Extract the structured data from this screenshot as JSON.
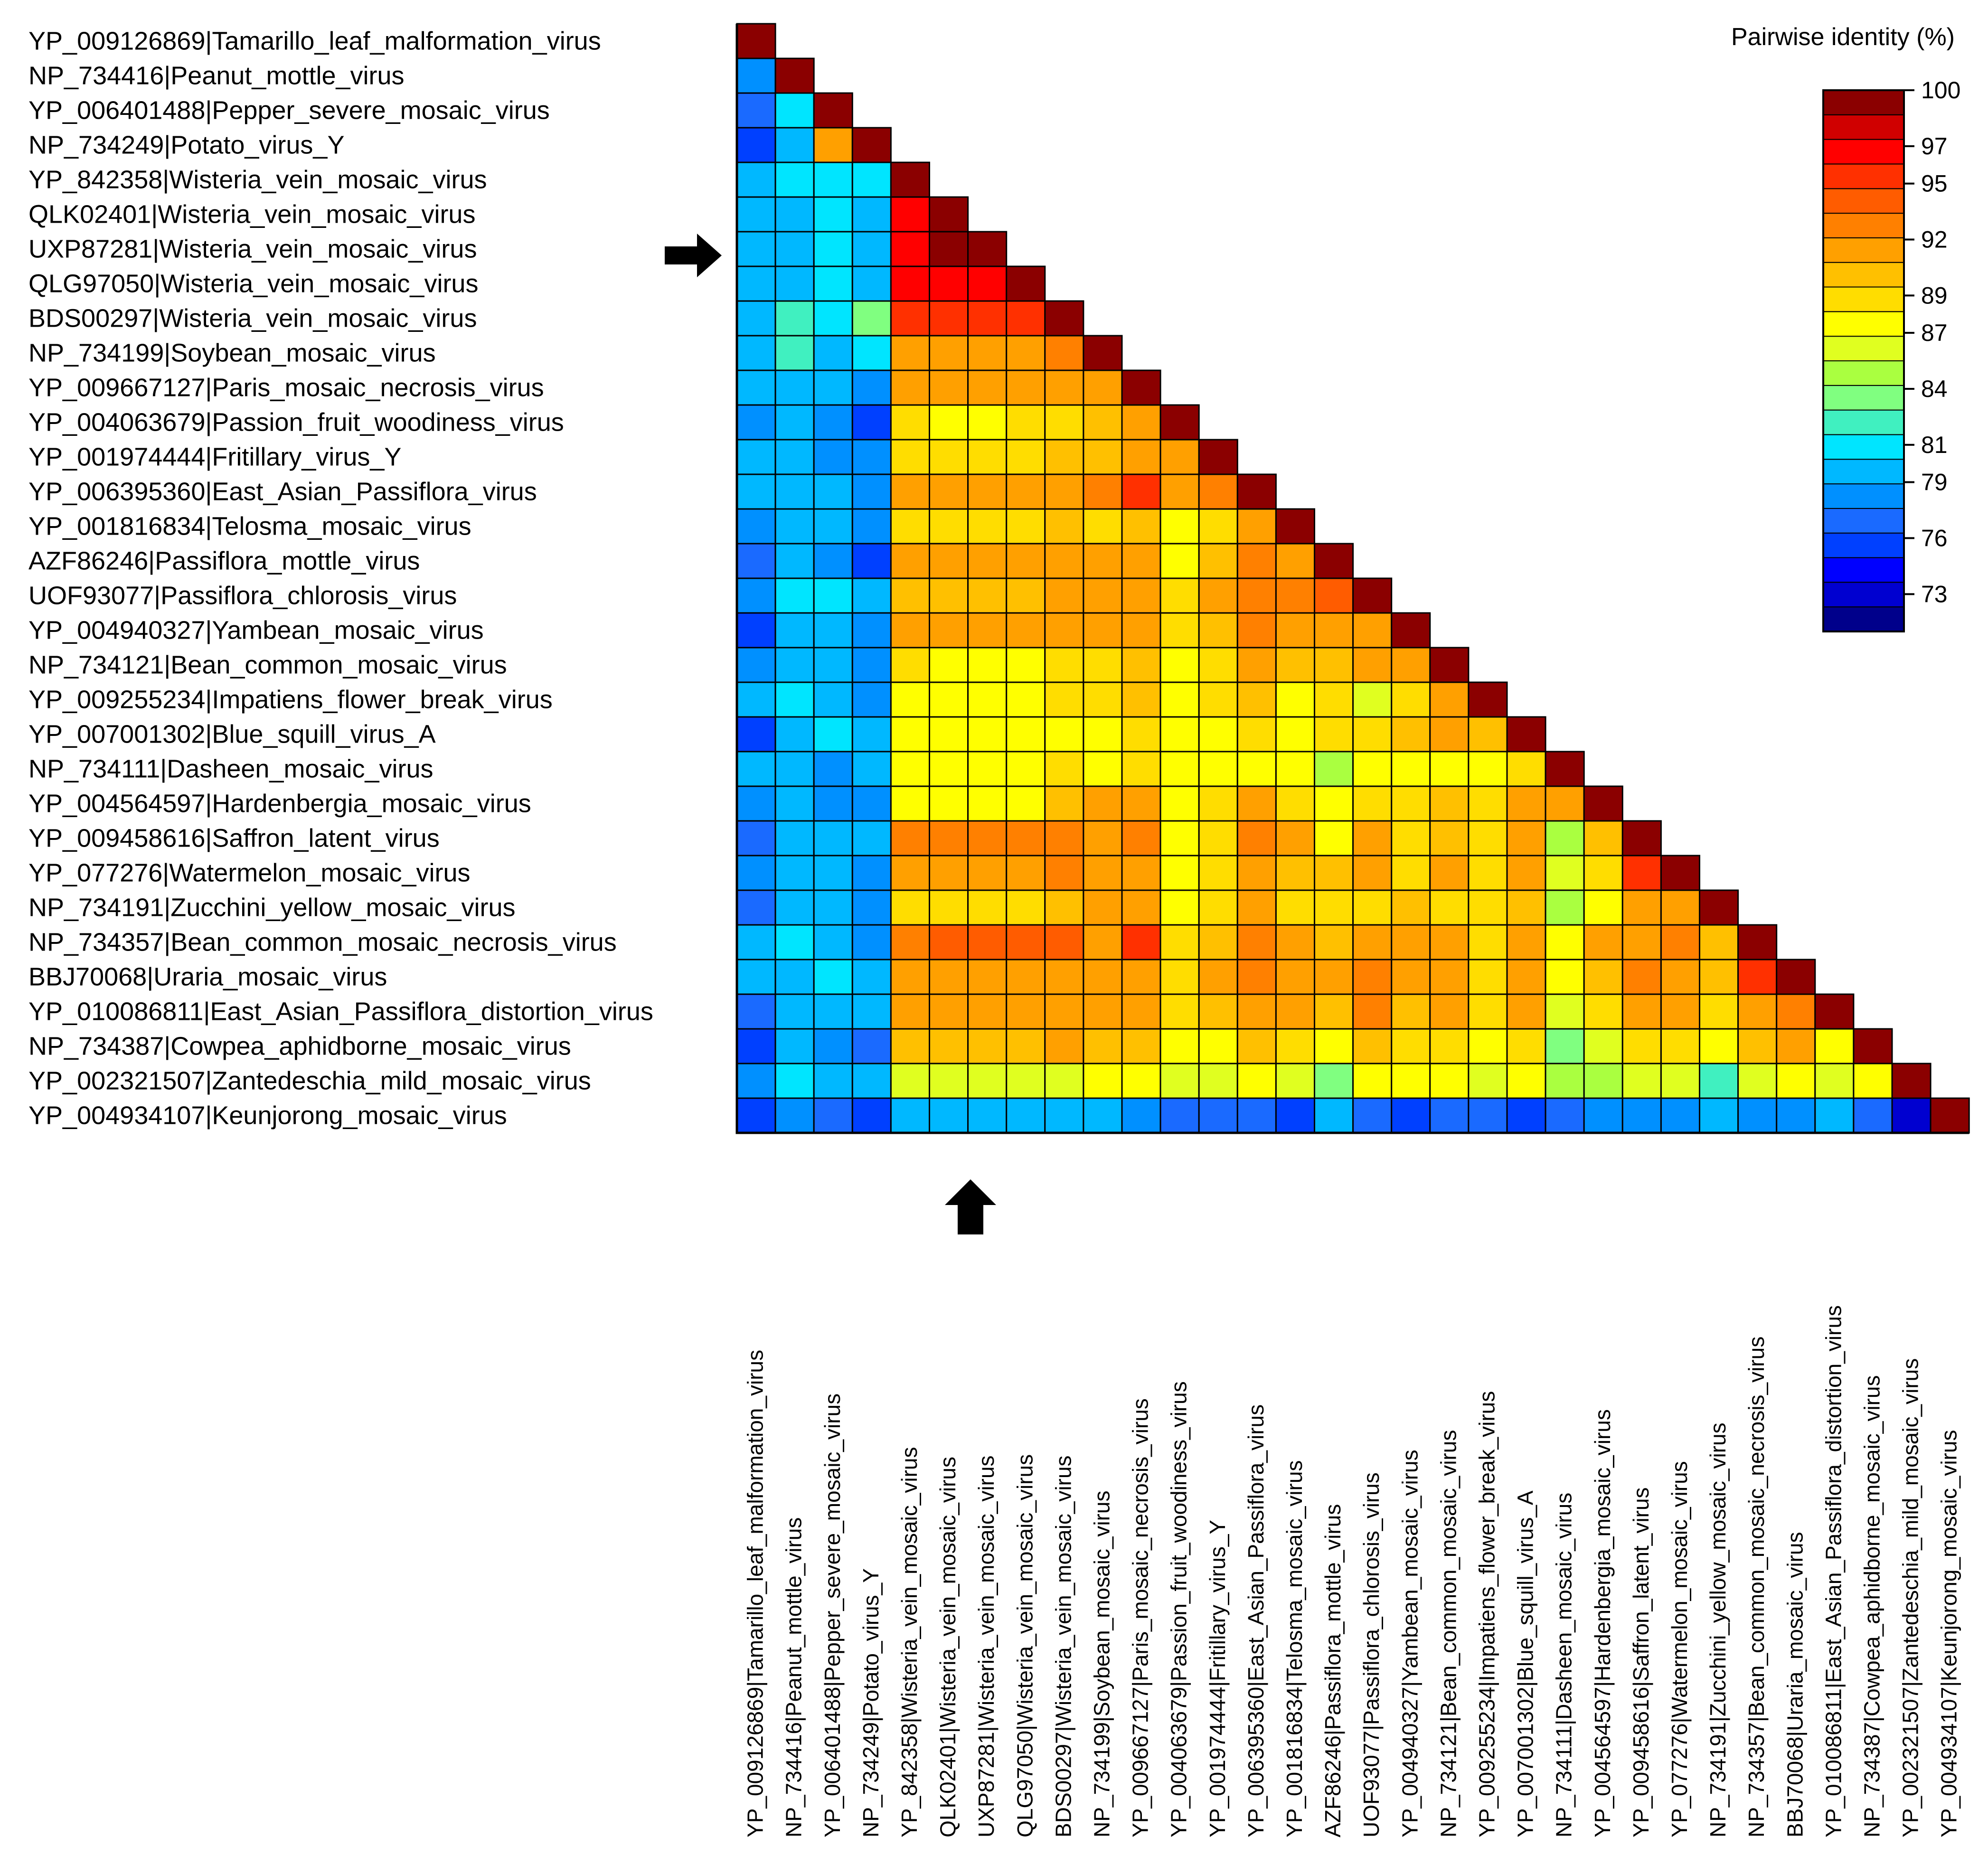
{
  "chart_data": {
    "type": "heatmap",
    "subtype": "lower-triangular pairwise identity matrix",
    "labels": [
      "YP_009126869|Tamarillo_leaf_malformation_virus",
      "NP_734416|Peanut_mottle_virus",
      "YP_006401488|Pepper_severe_mosaic_virus",
      "NP_734249|Potato_virus_Y",
      "YP_842358|Wisteria_vein_mosaic_virus",
      "QLK02401|Wisteria_vein_mosaic_virus",
      "UXP87281|Wisteria_vein_mosaic_virus",
      "QLG97050|Wisteria_vein_mosaic_virus",
      "BDS00297|Wisteria_vein_mosaic_virus",
      "NP_734199|Soybean_mosaic_virus",
      "YP_009667127|Paris_mosaic_necrosis_virus",
      "YP_004063679|Passion_fruit_woodiness_virus",
      "YP_001974444|Fritillary_virus_Y",
      "YP_006395360|East_Asian_Passiflora_virus",
      "YP_001816834|Telosma_mosaic_virus",
      "AZF86246|Passiflora_mottle_virus",
      "UOF93077|Passiflora_chlorosis_virus",
      "YP_004940327|Yambean_mosaic_virus",
      "NP_734121|Bean_common_mosaic_virus",
      "YP_009255234|Impatiens_flower_break_virus",
      "YP_007001302|Blue_squill_virus_A",
      "NP_734111|Dasheen_mosaic_virus",
      "YP_004564597|Hardenbergia_mosaic_virus",
      "YP_009458616|Saffron_latent_virus",
      "YP_077276|Watermelon_mosaic_virus",
      "NP_734191|Zucchini_yellow_mosaic_virus",
      "NP_734357|Bean_common_mosaic_necrosis_virus",
      "BBJ70068|Uraria_mosaic_virus",
      "YP_010086811|East_Asian_Passiflora_distortion_virus",
      "NP_734387|Cowpea_aphidborne_mosaic_virus",
      "YP_002321507|Zantedeschia_mild_mosaic_virus",
      "YP_004934107|Keunjorong_mosaic_virus"
    ],
    "matrix": [
      [
        100
      ],
      [
        78,
        100
      ],
      [
        77,
        81,
        100
      ],
      [
        75,
        80,
        92,
        100
      ],
      [
        79,
        81,
        81,
        81,
        100
      ],
      [
        79,
        80,
        81,
        80,
        97,
        100
      ],
      [
        79,
        80,
        81,
        80,
        97,
        100,
        100
      ],
      [
        79,
        80,
        81,
        80,
        97,
        97,
        97,
        100
      ],
      [
        80,
        82,
        81,
        83,
        95,
        96,
        96,
        96,
        100
      ],
      [
        80,
        82,
        80,
        81,
        92,
        92,
        92,
        92,
        93,
        100
      ],
      [
        79,
        80,
        79,
        78,
        92,
        92,
        92,
        92,
        92,
        91,
        100
      ],
      [
        78,
        79,
        78,
        76,
        89,
        88,
        88,
        89,
        89,
        90,
        91,
        100
      ],
      [
        79,
        80,
        78,
        78,
        89,
        89,
        89,
        89,
        90,
        90,
        92,
        91,
        100
      ],
      [
        79,
        80,
        79,
        78,
        91,
        91,
        91,
        91,
        92,
        93,
        95,
        91,
        93,
        100
      ],
      [
        78,
        80,
        79,
        78,
        89,
        89,
        89,
        89,
        90,
        89,
        90,
        87,
        89,
        92,
        100
      ],
      [
        77,
        79,
        78,
        76,
        91,
        91,
        91,
        91,
        91,
        92,
        92,
        88,
        90,
        93,
        92,
        100
      ],
      [
        78,
        81,
        81,
        79,
        90,
        90,
        90,
        90,
        91,
        92,
        92,
        89,
        91,
        93,
        93,
        94,
        100
      ],
      [
        76,
        80,
        79,
        78,
        91,
        91,
        91,
        91,
        92,
        92,
        92,
        89,
        90,
        93,
        91,
        92,
        91,
        100
      ],
      [
        78,
        80,
        79,
        78,
        89,
        87,
        87,
        88,
        89,
        89,
        90,
        88,
        89,
        92,
        90,
        90,
        91,
        91,
        100
      ],
      [
        79,
        81,
        79,
        78,
        88,
        88,
        88,
        88,
        89,
        89,
        90,
        87,
        89,
        90,
        88,
        89,
        86,
        89,
        91,
        100
      ],
      [
        76,
        80,
        81,
        79,
        87,
        87,
        87,
        88,
        88,
        88,
        89,
        87,
        88,
        89,
        88,
        89,
        89,
        90,
        91,
        90,
        100
      ],
      [
        79,
        79,
        78,
        79,
        88,
        88,
        88,
        88,
        89,
        88,
        89,
        87,
        88,
        88,
        87,
        85,
        87,
        88,
        87,
        88,
        89,
        100
      ],
      [
        78,
        79,
        78,
        78,
        88,
        88,
        88,
        88,
        90,
        91,
        91,
        87,
        89,
        91,
        89,
        88,
        89,
        89,
        90,
        89,
        92,
        91,
        100
      ],
      [
        77,
        80,
        79,
        79,
        93,
        93,
        93,
        93,
        93,
        92,
        93,
        88,
        89,
        93,
        91,
        88,
        91,
        89,
        90,
        89,
        92,
        85,
        90,
        100
      ],
      [
        78,
        79,
        79,
        78,
        92,
        92,
        92,
        92,
        93,
        91,
        92,
        88,
        89,
        92,
        90,
        90,
        92,
        89,
        91,
        89,
        91,
        86,
        89,
        95,
        100
      ],
      [
        77,
        79,
        79,
        78,
        89,
        89,
        89,
        89,
        90,
        91,
        91,
        87,
        89,
        91,
        89,
        89,
        89,
        90,
        89,
        89,
        90,
        85,
        88,
        91,
        91,
        100
      ],
      [
        79,
        81,
        79,
        78,
        93,
        94,
        94,
        94,
        94,
        91,
        95,
        89,
        90,
        93,
        91,
        90,
        92,
        92,
        92,
        89,
        92,
        87,
        91,
        92,
        93,
        90,
        100
      ],
      [
        79,
        80,
        81,
        79,
        91,
        91,
        91,
        92,
        92,
        91,
        92,
        89,
        91,
        93,
        92,
        91,
        93,
        92,
        92,
        89,
        91,
        87,
        90,
        93,
        92,
        90,
        96,
        100
      ],
      [
        77,
        80,
        80,
        79,
        91,
        91,
        91,
        91,
        92,
        91,
        91,
        89,
        90,
        92,
        91,
        90,
        93,
        90,
        92,
        89,
        91,
        86,
        89,
        91,
        92,
        89,
        92,
        93,
        100
      ],
      [
        76,
        79,
        78,
        77,
        90,
        90,
        90,
        90,
        91,
        90,
        90,
        88,
        88,
        90,
        89,
        87,
        90,
        89,
        89,
        87,
        89,
        83,
        86,
        89,
        89,
        88,
        90,
        91,
        88,
        100
      ],
      [
        78,
        81,
        80,
        80,
        86,
        86,
        86,
        86,
        86,
        87,
        87,
        86,
        86,
        88,
        86,
        84,
        87,
        87,
        88,
        86,
        87,
        85,
        85,
        86,
        86,
        82,
        86,
        87,
        86,
        87,
        100
      ],
      [
        76,
        78,
        77,
        76,
        80,
        80,
        80,
        79,
        79,
        79,
        78,
        77,
        77,
        77,
        76,
        79,
        77,
        76,
        77,
        77,
        76,
        77,
        78,
        78,
        78,
        79,
        78,
        78,
        79,
        77,
        73,
        100
      ]
    ],
    "colorbar": {
      "title": "Pairwise identity (%)",
      "range": [
        71,
        100
      ],
      "ticks": [
        100,
        97,
        95,
        92,
        89,
        87,
        84,
        81,
        79,
        76,
        73
      ],
      "colors": [
        "#00008b",
        "#0000d0",
        "#0000ff",
        "#0040ff",
        "#1a6aff",
        "#0090ff",
        "#00b8ff",
        "#00e5ff",
        "#40f0c0",
        "#80ff80",
        "#aaff40",
        "#e0ff20",
        "#ffff00",
        "#ffdd00",
        "#ffc000",
        "#ffa000",
        "#ff8000",
        "#ff5c00",
        "#ff3000",
        "#ff0000",
        "#d00000",
        "#8b0000"
      ]
    },
    "annotations": [
      "arrow marks row UXP87281|Wisteria_vein_mosaic_virus",
      "arrow marks column UXP87281|Wisteria_vein_mosaic_virus"
    ],
    "arrow_target_index": 6
  }
}
